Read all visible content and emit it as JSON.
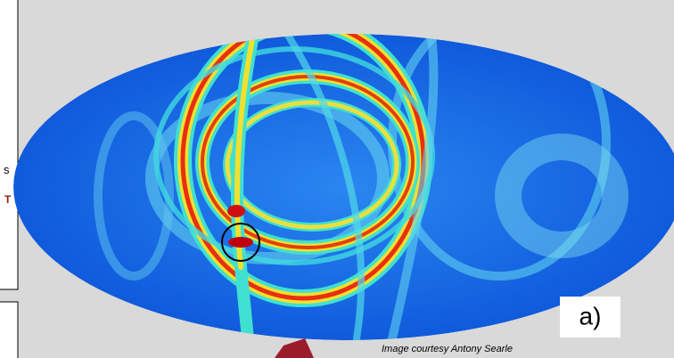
{
  "left_panel": {
    "text_1": "s",
    "text_2": "T"
  },
  "figure": {
    "panel_label": "a)",
    "credit": "Image courtesy Antony Searle"
  }
}
